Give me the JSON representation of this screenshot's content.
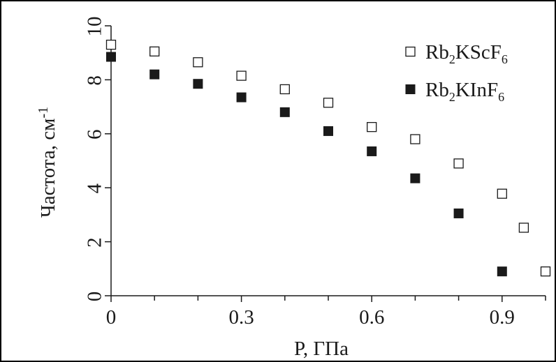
{
  "chart_data": {
    "type": "scatter",
    "xlabel": "P, ГПа",
    "ylabel_main": "Частота, см",
    "ylabel_sup": "-1",
    "xlim": [
      0,
      1.0
    ],
    "ylim": [
      0,
      10
    ],
    "xticks": [
      0,
      0.3,
      0.6,
      0.9
    ],
    "xtick_labels": [
      "0",
      "0.3",
      "0.6",
      "0.9"
    ],
    "xminor": [
      0.1,
      0.2,
      0.4,
      0.5,
      0.7,
      0.8,
      1.0
    ],
    "yticks": [
      0,
      2,
      4,
      6,
      8,
      10
    ],
    "ytick_labels": [
      "0",
      "2",
      "4",
      "6",
      "8",
      "10"
    ],
    "grid": false,
    "legend_position": "top-right",
    "series": [
      {
        "name": "Rb2KScF6",
        "label_parts": [
          "Rb",
          "2",
          "KScF",
          "6"
        ],
        "marker": "open-square",
        "color": "#1a1a1a",
        "x": [
          0.0,
          0.1,
          0.2,
          0.3,
          0.4,
          0.5,
          0.6,
          0.7,
          0.8,
          0.9,
          0.95,
          1.0
        ],
        "y": [
          9.3,
          9.05,
          8.65,
          8.15,
          7.65,
          7.15,
          6.25,
          5.8,
          4.9,
          3.78,
          2.52,
          0.9
        ]
      },
      {
        "name": "Rb2KInF6",
        "label_parts": [
          "Rb",
          "2",
          "KInF",
          "6"
        ],
        "marker": "filled-square",
        "color": "#1a1a1a",
        "x": [
          0.0,
          0.1,
          0.2,
          0.3,
          0.4,
          0.5,
          0.6,
          0.7,
          0.8,
          0.9
        ],
        "y": [
          8.85,
          8.2,
          7.85,
          7.35,
          6.8,
          6.1,
          5.35,
          4.35,
          3.05,
          0.9
        ]
      }
    ]
  }
}
